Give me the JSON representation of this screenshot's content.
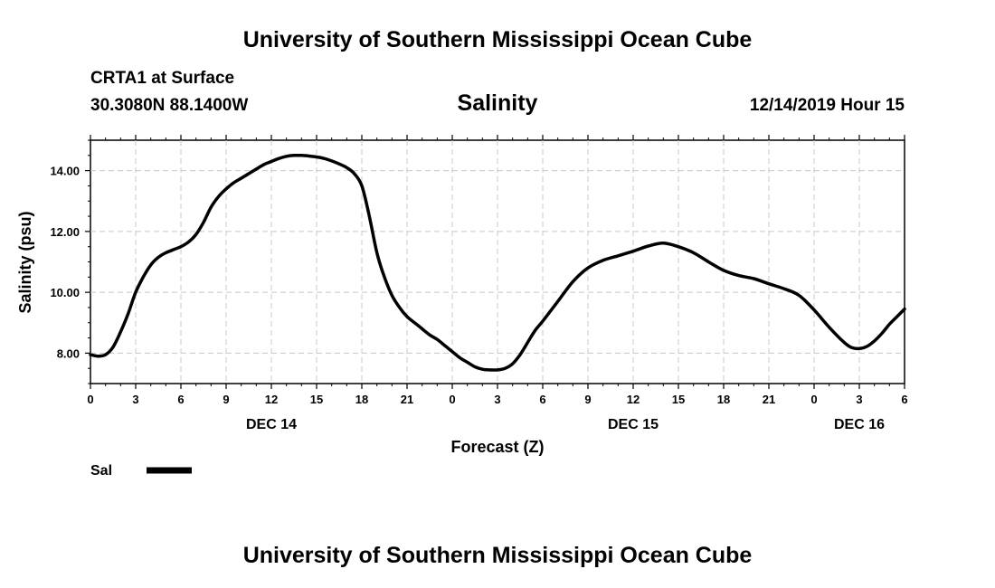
{
  "header": {
    "title": "University of Southern Mississippi Ocean Cube",
    "station": "CRTA1 at Surface",
    "coords": "30.3080N 88.1400W",
    "variable": "Salinity",
    "datetime": "12/14/2019 Hour 15"
  },
  "footer": {
    "title": "University of Southern Mississippi Ocean Cube"
  },
  "chart_data": {
    "type": "line",
    "title": "Salinity",
    "xlabel": "Forecast (Z)",
    "ylabel": "Salinity (psu)",
    "xlim": [
      0,
      54
    ],
    "ylim": [
      7.0,
      15.0
    ],
    "grid": true,
    "x_tick_labels": [
      "0",
      "3",
      "6",
      "9",
      "12",
      "15",
      "18",
      "21",
      "0",
      "3",
      "6",
      "9",
      "12",
      "15",
      "18",
      "21",
      "0",
      "3",
      "6"
    ],
    "y_ticks": [
      8,
      10,
      12,
      14
    ],
    "y_tick_labels": [
      "8.00",
      "10.00",
      "12.00",
      "14.00"
    ],
    "day_labels": [
      {
        "label": "DEC 14",
        "x": 12
      },
      {
        "label": "DEC 15",
        "x": 36
      },
      {
        "label": "DEC 16",
        "x": 51
      }
    ],
    "series": [
      {
        "name": "Sal",
        "color": "#000000",
        "x": [
          0,
          0.5,
          1,
          1.5,
          2,
          2.5,
          3,
          3.5,
          4,
          4.5,
          5,
          5.5,
          6,
          6.5,
          7,
          7.5,
          8,
          8.5,
          9,
          9.5,
          10,
          10.5,
          11,
          11.5,
          12,
          12.5,
          13,
          13.5,
          14,
          14.5,
          15,
          15.5,
          16,
          16.5,
          17,
          17.5,
          18,
          18.5,
          19,
          19.5,
          20,
          20.5,
          21,
          21.5,
          22,
          22.5,
          23,
          23.5,
          24,
          24.5,
          25,
          25.5,
          26,
          26.5,
          27,
          27.5,
          28,
          28.5,
          29,
          29.5,
          30,
          31,
          32,
          33,
          34,
          35,
          36,
          37,
          38,
          39,
          40,
          41,
          42,
          43,
          44,
          45,
          46,
          47,
          48,
          49,
          50,
          50.5,
          51,
          51.5,
          52,
          52.5,
          53,
          53.5,
          54
        ],
        "y": [
          7.95,
          7.9,
          7.95,
          8.2,
          8.7,
          9.3,
          10.0,
          10.5,
          10.9,
          11.15,
          11.3,
          11.4,
          11.5,
          11.65,
          11.9,
          12.3,
          12.8,
          13.15,
          13.4,
          13.6,
          13.75,
          13.9,
          14.05,
          14.2,
          14.3,
          14.4,
          14.47,
          14.5,
          14.5,
          14.48,
          14.45,
          14.4,
          14.32,
          14.22,
          14.1,
          13.9,
          13.5,
          12.5,
          11.3,
          10.5,
          9.9,
          9.5,
          9.2,
          9.0,
          8.8,
          8.6,
          8.45,
          8.25,
          8.05,
          7.85,
          7.7,
          7.55,
          7.47,
          7.45,
          7.45,
          7.5,
          7.65,
          7.95,
          8.35,
          8.75,
          9.05,
          9.7,
          10.35,
          10.8,
          11.05,
          11.2,
          11.35,
          11.52,
          11.62,
          11.5,
          11.3,
          11.0,
          10.72,
          10.55,
          10.45,
          10.28,
          10.12,
          9.9,
          9.42,
          8.85,
          8.35,
          8.18,
          8.15,
          8.22,
          8.4,
          8.65,
          8.95,
          9.2,
          9.45
        ]
      }
    ],
    "legend": {
      "label": "Sal",
      "position": "bottom-left"
    }
  }
}
